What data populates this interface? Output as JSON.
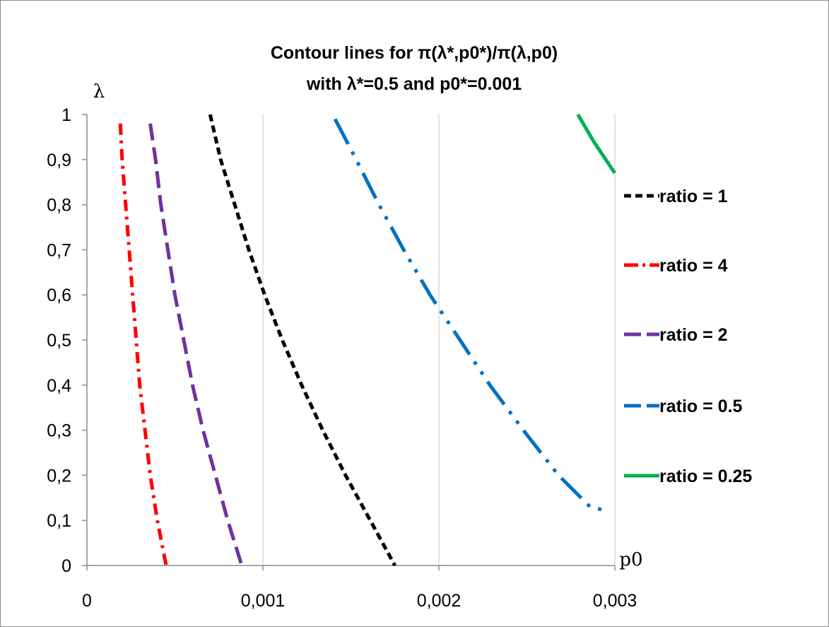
{
  "chart_data": {
    "type": "line",
    "title_line1_prefix": "Contour lines for ",
    "title_line1_formula": "π(λ*,p0*)/π(λ,p0)",
    "title_line2": "with λ*=0.5 and p0*=0.001",
    "ylabel": "λ",
    "xlabel": "p0",
    "xlim": [
      0,
      0.003
    ],
    "ylim": [
      0,
      1
    ],
    "x_ticks": [
      0,
      0.001,
      0.002,
      0.003
    ],
    "x_tick_labels": [
      "0",
      "0,001",
      "0,002",
      "0,003"
    ],
    "y_ticks": [
      0,
      0.1,
      0.2,
      0.3,
      0.4,
      0.5,
      0.6,
      0.7,
      0.8,
      0.9,
      1
    ],
    "y_tick_labels": [
      "0",
      "0,1",
      "0,2",
      "0,3",
      "0,4",
      "0,5",
      "0,6",
      "0,7",
      "0,8",
      "0,9",
      "1"
    ],
    "grid": "vertical",
    "legend_position": "right",
    "series": [
      {
        "name": "ratio = 1",
        "color": "#000000",
        "dash": "short-dash",
        "points": [
          [
            0.0007,
            1.0
          ],
          [
            0.00076,
            0.9
          ],
          [
            0.00084,
            0.8
          ],
          [
            0.00092,
            0.7
          ],
          [
            0.00101,
            0.6
          ],
          [
            0.00111,
            0.5
          ],
          [
            0.00122,
            0.4
          ],
          [
            0.00134,
            0.3
          ],
          [
            0.00147,
            0.2
          ],
          [
            0.00161,
            0.1
          ],
          [
            0.00175,
            0.0
          ]
        ]
      },
      {
        "name": "ratio = 4",
        "color": "#ff0000",
        "dash": "dash-dot",
        "points": [
          [
            0.00019,
            0.98
          ],
          [
            0.0002,
            0.9
          ],
          [
            0.00022,
            0.8
          ],
          [
            0.00024,
            0.7
          ],
          [
            0.00026,
            0.6
          ],
          [
            0.00028,
            0.5
          ],
          [
            0.0003,
            0.4
          ],
          [
            0.00033,
            0.3
          ],
          [
            0.00036,
            0.2
          ],
          [
            0.0004,
            0.1
          ],
          [
            0.00045,
            0.0
          ]
        ]
      },
      {
        "name": "ratio = 2",
        "color": "#7030a0",
        "dash": "long-dash",
        "points": [
          [
            0.00036,
            0.98
          ],
          [
            0.00039,
            0.9
          ],
          [
            0.00042,
            0.8
          ],
          [
            0.00046,
            0.7
          ],
          [
            0.0005,
            0.6
          ],
          [
            0.00055,
            0.5
          ],
          [
            0.0006,
            0.4
          ],
          [
            0.00066,
            0.3
          ],
          [
            0.00073,
            0.2
          ],
          [
            0.0008,
            0.1
          ],
          [
            0.00088,
            0.0
          ]
        ]
      },
      {
        "name": "ratio = 0.5",
        "color": "#0070c0",
        "dash": "long-dash-dot-dot",
        "points": [
          [
            0.00141,
            0.99
          ],
          [
            0.00153,
            0.9
          ],
          [
            0.00166,
            0.8
          ],
          [
            0.0018,
            0.7
          ],
          [
            0.00195,
            0.6
          ],
          [
            0.00212,
            0.5
          ],
          [
            0.00229,
            0.4
          ],
          [
            0.00248,
            0.3
          ],
          [
            0.00268,
            0.2
          ],
          [
            0.00286,
            0.13
          ],
          [
            0.00297,
            0.12
          ]
        ]
      },
      {
        "name": "ratio = 0.25",
        "color": "#00b050",
        "dash": "solid",
        "points": [
          [
            0.00279,
            1.0
          ],
          [
            0.00288,
            0.94
          ],
          [
            0.003,
            0.87
          ]
        ]
      }
    ]
  }
}
